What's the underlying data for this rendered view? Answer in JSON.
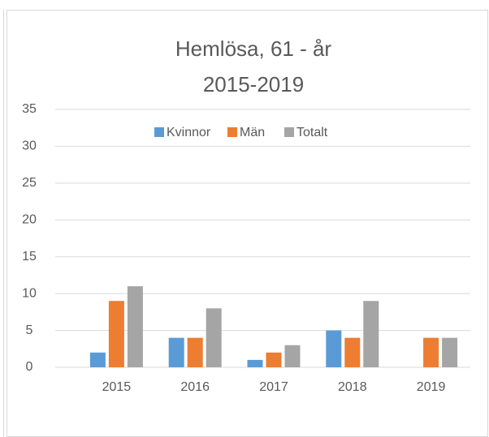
{
  "chart_data": {
    "type": "bar",
    "title": "Hemlösa, 61 - år",
    "subtitle": "2015-2019",
    "categories": [
      "2015",
      "2016",
      "2017",
      "2018",
      "2019"
    ],
    "series": [
      {
        "name": "Kvinnor",
        "color": "#5b9bd5",
        "values": [
          2,
          4,
          1,
          5,
          0
        ]
      },
      {
        "name": "Män",
        "color": "#ed7d31",
        "values": [
          9,
          4,
          2,
          4,
          4
        ]
      },
      {
        "name": "Totalt",
        "color": "#a5a5a5",
        "values": [
          11,
          8,
          3,
          9,
          4
        ]
      }
    ],
    "ylim": [
      0,
      35
    ],
    "yticks": [
      0,
      5,
      10,
      15,
      20,
      25,
      30,
      35
    ],
    "grid": true,
    "legend": "top"
  }
}
